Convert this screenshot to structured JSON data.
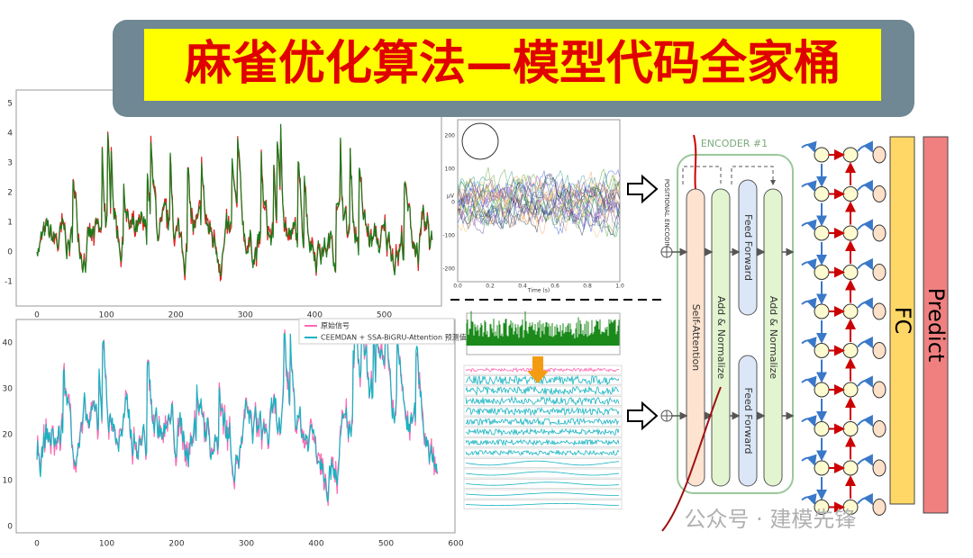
{
  "title": "麻雀优化算法—模型代码全家桶",
  "top_plot": {
    "yticks": [
      5,
      4,
      3,
      2,
      1,
      0,
      -1
    ],
    "xticks": [
      0,
      100,
      200,
      300,
      400,
      500
    ]
  },
  "bottom_plot": {
    "yticks": [
      40,
      30,
      20,
      10,
      0
    ],
    "xticks": [
      0,
      100,
      200,
      300,
      400,
      500,
      600
    ],
    "legend": [
      "原始信号",
      "CEEMDAN + SSA-BiGRU-Attention 预测值"
    ]
  },
  "eeg_plot": {
    "yticks": [
      200,
      100,
      0,
      -100,
      -200
    ],
    "xticks": [
      {
        "value": 0,
        "label": "0.0"
      },
      {
        "value": 0.2,
        "label": "0.2"
      },
      {
        "value": 0.4,
        "label": "0.4"
      },
      {
        "value": 0.6,
        "label": "0.6"
      },
      {
        "value": 0.8,
        "label": "0.8"
      },
      {
        "value": 1,
        "label": "1.0"
      }
    ],
    "xlabel": "Time (s)",
    "ylabel": "µV"
  },
  "encoder": {
    "title": "ENCODER #1",
    "positional": "POSITIONAL ENCODING",
    "self_attention": "Self-Attention",
    "add_norm": "Add & Normalize",
    "feed_forward": "Feed Forward"
  },
  "fc": "FC",
  "predict": "Predict",
  "watermark": "公众号 · 建模先锋"
}
